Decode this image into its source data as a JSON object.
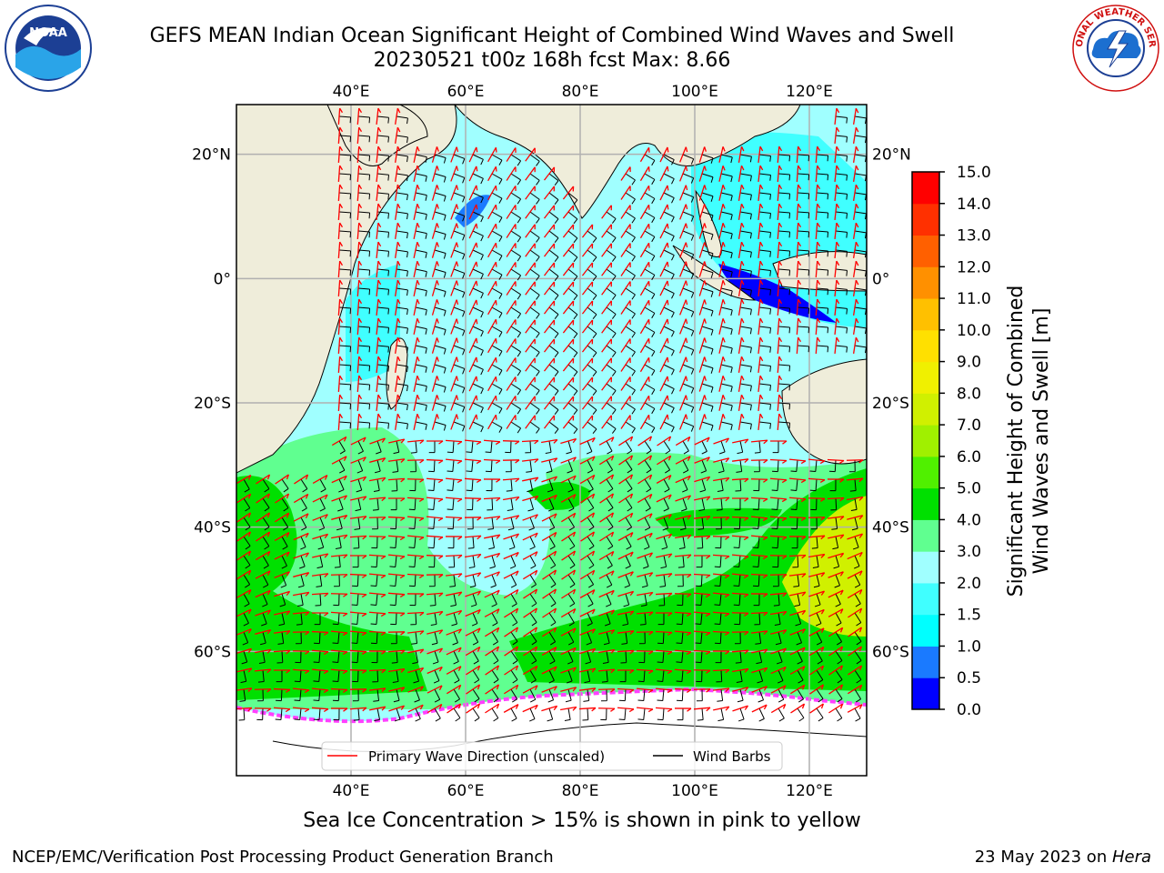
{
  "title_line1": "GEFS MEAN Indian Ocean Significant Height of Combined Wind Waves and Swell",
  "title_line2": "20230521 t00z 168h fcst   Max: 8.66",
  "ice_note": "Sea Ice Concentration > 15% is shown in pink to yellow",
  "footer_left": "NCEP/EMC/Verification Post Processing Product Generation Branch",
  "footer_right_prefix": "23 May 2023 on ",
  "footer_right_host": "Hera",
  "logos": {
    "noaa_text": "NOAA",
    "nws_text": "NATIONAL WEATHER SERVICE"
  },
  "map": {
    "lon_labels": [
      "40°E",
      "60°E",
      "80°E",
      "100°E",
      "120°E"
    ],
    "lat_labels": [
      "20°N",
      "0°",
      "20°S",
      "40°S",
      "60°S"
    ],
    "lon_values": [
      40,
      60,
      80,
      100,
      120
    ],
    "lat_values": [
      20,
      0,
      -20,
      -40,
      -60
    ],
    "lon_range": [
      20,
      130
    ],
    "lat_range": [
      -80,
      28
    ],
    "colors": {
      "land": "#efedda",
      "ice": "#ffffff",
      "wave_arrow": "#ff0000",
      "barb": "#000000",
      "grid": "#b0b0b0"
    }
  },
  "legend": {
    "wave_label": "Primary Wave Direction (unscaled)",
    "barb_label": "Wind Barbs"
  },
  "colorbar": {
    "label": "Significant Height of Combined Wind Waves and Swell [m]",
    "label_line1": "Significant Height of Combined",
    "label_line2": "Wind Waves and Swell [m]",
    "ticks": [
      "0.0",
      "0.5",
      "1.0",
      "1.5",
      "2.0",
      "3.0",
      "4.0",
      "5.0",
      "6.0",
      "7.0",
      "8.0",
      "9.0",
      "10.0",
      "11.0",
      "12.0",
      "13.0",
      "14.0",
      "15.0"
    ],
    "colors": [
      "#0000ff",
      "#1a7aff",
      "#00ffff",
      "#40ffff",
      "#a0ffff",
      "#60ff90",
      "#00e000",
      "#50f000",
      "#a0f000",
      "#d0f000",
      "#f0f000",
      "#ffe000",
      "#ffc000",
      "#ff9000",
      "#ff6000",
      "#ff3000",
      "#ff0000"
    ]
  }
}
